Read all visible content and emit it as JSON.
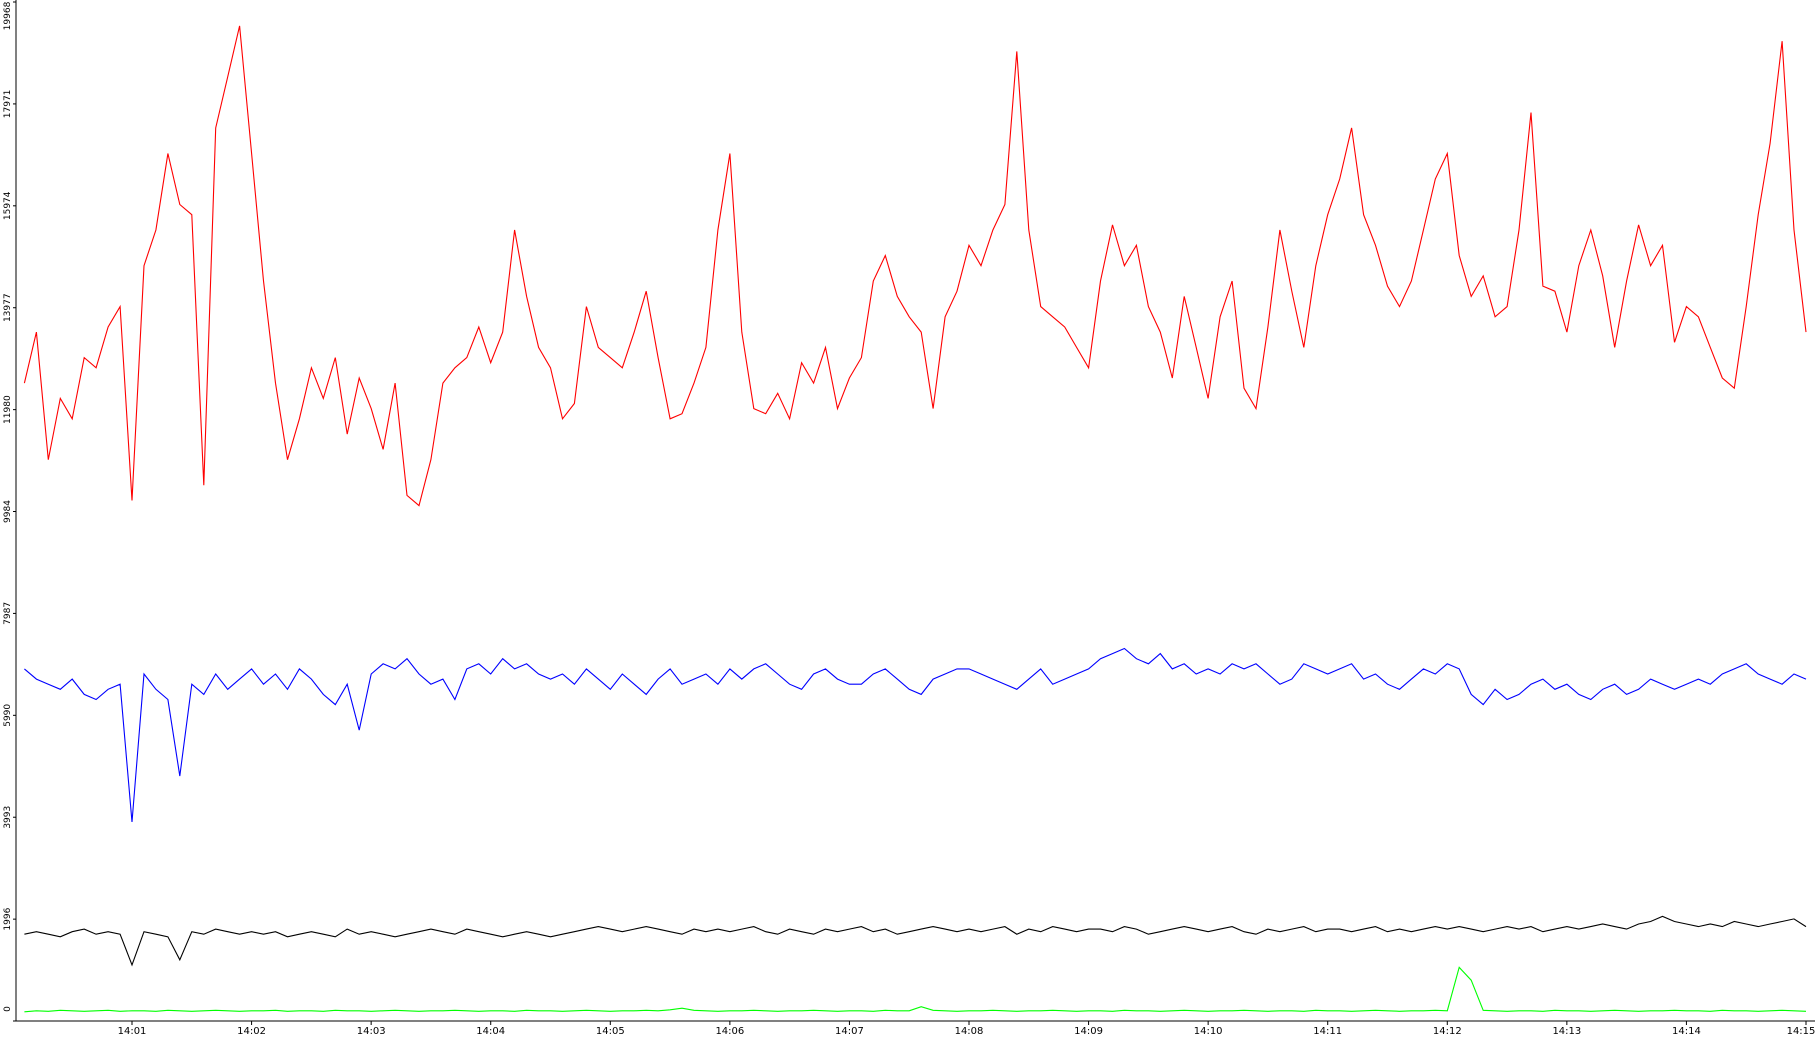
{
  "chart_data": {
    "type": "line",
    "categories": [
      null,
      null,
      null,
      null,
      null,
      null,
      null,
      null,
      null,
      "14:01",
      null,
      null,
      null,
      null,
      null,
      null,
      null,
      null,
      null,
      "14:02",
      null,
      null,
      null,
      null,
      null,
      null,
      null,
      null,
      null,
      "14:03",
      null,
      null,
      null,
      null,
      null,
      null,
      null,
      null,
      null,
      "14:04",
      null,
      null,
      null,
      null,
      null,
      null,
      null,
      null,
      null,
      "14:05",
      null,
      null,
      null,
      null,
      null,
      null,
      null,
      null,
      null,
      "14:06",
      null,
      null,
      null,
      null,
      null,
      null,
      null,
      null,
      null,
      "14:07",
      null,
      null,
      null,
      null,
      null,
      null,
      null,
      null,
      null,
      "14:08",
      null,
      null,
      null,
      null,
      null,
      null,
      null,
      null,
      null,
      "14:09",
      null,
      null,
      null,
      null,
      null,
      null,
      null,
      null,
      null,
      "14:10",
      null,
      null,
      null,
      null,
      null,
      null,
      null,
      null,
      null,
      "14:11",
      null,
      null,
      null,
      null,
      null,
      null,
      null,
      null,
      null,
      "14:12",
      null,
      null,
      null,
      null,
      null,
      null,
      null,
      null,
      null,
      "14:13",
      null,
      null,
      null,
      null,
      null,
      null,
      null,
      null,
      null,
      "14:14",
      null,
      null,
      null,
      null,
      null,
      null,
      null,
      null,
      null,
      "14:15"
    ],
    "series": [
      {
        "color": "#ff0000",
        "values": [
          12500,
          13500,
          11000,
          12200,
          11800,
          13000,
          12800,
          13600,
          14000,
          10200,
          14800,
          15500,
          17000,
          16000,
          15800,
          10500,
          17500,
          18500,
          19500,
          17000,
          14500,
          12500,
          11000,
          11800,
          12800,
          12200,
          13000,
          11500,
          12600,
          12000,
          11200,
          12500,
          10300,
          10100,
          11000,
          12500,
          12800,
          13000,
          13600,
          12900,
          13500,
          15500,
          14200,
          13200,
          12800,
          11800,
          12100,
          14000,
          13200,
          13000,
          12800,
          13500,
          14300,
          13000,
          11800,
          11900,
          12500,
          13200,
          15500,
          17000,
          13500,
          12000,
          11900,
          12300,
          11800,
          12900,
          12500,
          13200,
          12000,
          12600,
          13000,
          14500,
          15000,
          14200,
          13800,
          13500,
          12000,
          13800,
          14300,
          15200,
          14800,
          15500,
          16000,
          19000,
          15500,
          14000,
          13800,
          13600,
          13200,
          12800,
          14500,
          15600,
          14800,
          15200,
          14000,
          13500,
          12600,
          14200,
          13200,
          12200,
          13800,
          14500,
          12400,
          12000,
          13600,
          15500,
          14300,
          13200,
          14800,
          15800,
          16500,
          17500,
          15800,
          15200,
          14400,
          14000,
          14500,
          15500,
          16500,
          17000,
          15000,
          14200,
          14600,
          13800,
          14000,
          15500,
          17800,
          14400,
          14300,
          13500,
          14800,
          15500,
          14600,
          13200,
          14500,
          15600,
          14800,
          15200,
          13300,
          14000,
          13800,
          13200,
          12600,
          12400,
          14000,
          15800,
          17200,
          19200,
          15500,
          13500
        ]
      },
      {
        "color": "#0000ff",
        "values": [
          6900,
          6700,
          6600,
          6500,
          6700,
          6400,
          6300,
          6500,
          6600,
          3900,
          6800,
          6500,
          6300,
          4800,
          6600,
          6400,
          6800,
          6500,
          6700,
          6900,
          6600,
          6800,
          6500,
          6900,
          6700,
          6400,
          6200,
          6600,
          5700,
          6800,
          7000,
          6900,
          7100,
          6800,
          6600,
          6700,
          6300,
          6900,
          7000,
          6800,
          7100,
          6900,
          7000,
          6800,
          6700,
          6800,
          6600,
          6900,
          6700,
          6500,
          6800,
          6600,
          6400,
          6700,
          6900,
          6600,
          6700,
          6800,
          6600,
          6900,
          6700,
          6900,
          7000,
          6800,
          6600,
          6500,
          6800,
          6900,
          6700,
          6600,
          6600,
          6800,
          6900,
          6700,
          6500,
          6400,
          6700,
          6800,
          6900,
          6900,
          6800,
          6700,
          6600,
          6500,
          6700,
          6900,
          6600,
          6700,
          6800,
          6900,
          7100,
          7200,
          7300,
          7100,
          7000,
          7200,
          6900,
          7000,
          6800,
          6900,
          6800,
          7000,
          6900,
          7000,
          6800,
          6600,
          6700,
          7000,
          6900,
          6800,
          6900,
          7000,
          6700,
          6800,
          6600,
          6500,
          6700,
          6900,
          6800,
          7000,
          6900,
          6400,
          6200,
          6500,
          6300,
          6400,
          6600,
          6700,
          6500,
          6600,
          6400,
          6300,
          6500,
          6600,
          6400,
          6500,
          6700,
          6600,
          6500,
          6600,
          6700,
          6600,
          6800,
          6900,
          7000,
          6800,
          6700,
          6600,
          6800,
          6700
        ]
      },
      {
        "color": "#000000",
        "values": [
          1700,
          1750,
          1700,
          1650,
          1750,
          1800,
          1700,
          1750,
          1700,
          1100,
          1750,
          1700,
          1650,
          1200,
          1750,
          1700,
          1800,
          1750,
          1700,
          1750,
          1700,
          1750,
          1650,
          1700,
          1750,
          1700,
          1650,
          1800,
          1700,
          1750,
          1700,
          1650,
          1700,
          1750,
          1800,
          1750,
          1700,
          1800,
          1750,
          1700,
          1650,
          1700,
          1750,
          1700,
          1650,
          1700,
          1750,
          1800,
          1850,
          1800,
          1750,
          1800,
          1850,
          1800,
          1750,
          1700,
          1800,
          1750,
          1800,
          1750,
          1800,
          1850,
          1750,
          1700,
          1800,
          1750,
          1700,
          1800,
          1750,
          1800,
          1850,
          1750,
          1800,
          1700,
          1750,
          1800,
          1850,
          1800,
          1750,
          1800,
          1750,
          1800,
          1850,
          1700,
          1800,
          1750,
          1850,
          1800,
          1750,
          1800,
          1800,
          1750,
          1850,
          1800,
          1700,
          1750,
          1800,
          1850,
          1800,
          1750,
          1800,
          1850,
          1750,
          1700,
          1800,
          1750,
          1800,
          1850,
          1750,
          1800,
          1800,
          1750,
          1800,
          1850,
          1750,
          1800,
          1750,
          1800,
          1850,
          1800,
          1850,
          1800,
          1750,
          1800,
          1850,
          1800,
          1850,
          1750,
          1800,
          1850,
          1800,
          1850,
          1900,
          1850,
          1800,
          1900,
          1950,
          2050,
          1950,
          1900,
          1850,
          1900,
          1850,
          1950,
          1900,
          1850,
          1900,
          1950,
          2000,
          1850
        ]
      },
      {
        "color": "#00ff00",
        "values": [
          180,
          200,
          190,
          210,
          200,
          190,
          200,
          210,
          190,
          200,
          200,
          190,
          210,
          200,
          190,
          200,
          210,
          200,
          190,
          200,
          200,
          210,
          190,
          200,
          200,
          190,
          210,
          200,
          200,
          190,
          200,
          210,
          200,
          190,
          200,
          200,
          210,
          200,
          190,
          200,
          200,
          190,
          210,
          200,
          200,
          190,
          200,
          210,
          200,
          190,
          200,
          200,
          210,
          200,
          220,
          250,
          210,
          200,
          190,
          200,
          200,
          210,
          200,
          190,
          200,
          200,
          210,
          200,
          190,
          200,
          200,
          190,
          210,
          200,
          200,
          280,
          210,
          200,
          190,
          200,
          200,
          210,
          200,
          190,
          200,
          200,
          210,
          200,
          190,
          200,
          200,
          190,
          210,
          200,
          200,
          190,
          200,
          210,
          200,
          190,
          200,
          200,
          210,
          200,
          190,
          200,
          200,
          190,
          210,
          200,
          200,
          190,
          200,
          210,
          200,
          190,
          200,
          200,
          210,
          200,
          1050,
          800,
          210,
          200,
          190,
          200,
          200,
          190,
          210,
          200,
          200,
          190,
          200,
          210,
          200,
          190,
          200,
          200,
          210,
          200,
          200,
          190,
          210,
          200,
          200,
          190,
          200,
          210,
          200,
          190
        ]
      }
    ],
    "ylim": [
      0,
      19968
    ],
    "yticks": [
      0,
      1996,
      3993,
      5990,
      7987,
      9984,
      11980,
      13977,
      15974,
      17971,
      19968
    ]
  }
}
